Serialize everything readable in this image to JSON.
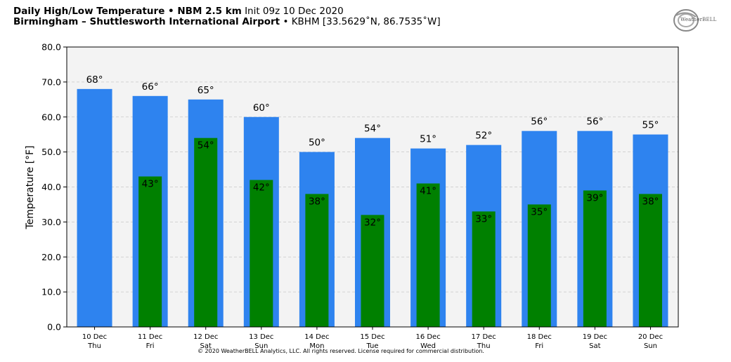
{
  "header": {
    "title_bold": "Daily High/Low Temperature • NBM 2.5 km",
    "title_init": "Init 09z 10 Dec 2020",
    "location_bold": "Birmingham – Shuttlesworth International Airport",
    "location_detail": "• KBHM [33.5629˚N, 86.7535˚W]"
  },
  "logo": {
    "text": "WeatherBELL",
    "icon": "weatherbell-swirl-logo"
  },
  "footer": {
    "copyright": "© 2020 WeatherBELL Analytics, LLC. All rights reserved. License required for commercial distribution."
  },
  "chart_data": {
    "type": "bar",
    "title": "Daily High/Low Temperature • NBM 2.5 km",
    "ylabel": "Temperature [°F]",
    "xlabel": "",
    "ylim": [
      0,
      80
    ],
    "yticks": [
      "0.0",
      "10.0",
      "20.0",
      "30.0",
      "40.0",
      "50.0",
      "60.0",
      "70.0",
      "80.0"
    ],
    "grid": true,
    "categories": [
      [
        "10 Dec",
        "Thu"
      ],
      [
        "11 Dec",
        "Fri"
      ],
      [
        "12 Dec",
        "Sat"
      ],
      [
        "13 Dec",
        "Sun"
      ],
      [
        "14 Dec",
        "Mon"
      ],
      [
        "15 Dec",
        "Tue"
      ],
      [
        "16 Dec",
        "Wed"
      ],
      [
        "17 Dec",
        "Thu"
      ],
      [
        "18 Dec",
        "Fri"
      ],
      [
        "19 Dec",
        "Sat"
      ],
      [
        "20 Dec",
        "Sun"
      ]
    ],
    "series": [
      {
        "values": [
          68,
          66,
          65,
          60,
          50,
          54,
          51,
          52,
          56,
          56,
          55
        ],
        "labels": [
          "68°",
          "66°",
          "65°",
          "60°",
          "50°",
          "54°",
          "51°",
          "52°",
          "56°",
          "56°",
          "55°"
        ],
        "color": "#2e83ef"
      },
      {
        "values": [
          null,
          43,
          54,
          42,
          38,
          32,
          41,
          33,
          35,
          39,
          38
        ],
        "labels": [
          null,
          "43°",
          "54°",
          "42°",
          "38°",
          "32°",
          "41°",
          "33°",
          "35°",
          "39°",
          "38°"
        ],
        "color": "#008000"
      }
    ],
    "plot_background": "#f3f3f3"
  }
}
